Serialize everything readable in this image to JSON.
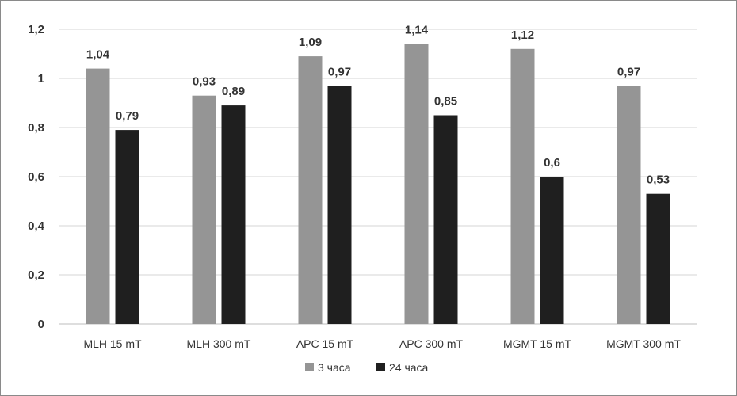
{
  "chart_data": {
    "type": "bar",
    "categories": [
      "MLH 15 mT",
      "MLH 300 mT",
      "APC 15 mT",
      "APC 300 mT",
      "MGMT 15 mT",
      "MGMT 300 mT"
    ],
    "series": [
      {
        "name": "3 часа",
        "color": "#959595",
        "values": [
          1.04,
          0.93,
          1.09,
          1.14,
          1.12,
          0.97
        ],
        "labels": [
          "1,04",
          "0,93",
          "1,09",
          "1,14",
          "1,12",
          "0,97"
        ]
      },
      {
        "name": "24 часа",
        "color": "#1f1f1f",
        "values": [
          0.79,
          0.89,
          0.97,
          0.85,
          0.6,
          0.53
        ],
        "labels": [
          "0,79",
          "0,89",
          "0,97",
          "0,85",
          "0,6",
          "0,53"
        ]
      }
    ],
    "yticks": [
      0,
      0.2,
      0.4,
      0.6,
      0.8,
      1,
      1.2
    ],
    "ytick_labels": [
      "0",
      "0,2",
      "0,4",
      "0,6",
      "0,8",
      "1",
      "1,2"
    ],
    "ylim": [
      0,
      1.2
    ],
    "grid": true,
    "legend_position": "bottom",
    "title": "",
    "xlabel": "",
    "ylabel": ""
  }
}
